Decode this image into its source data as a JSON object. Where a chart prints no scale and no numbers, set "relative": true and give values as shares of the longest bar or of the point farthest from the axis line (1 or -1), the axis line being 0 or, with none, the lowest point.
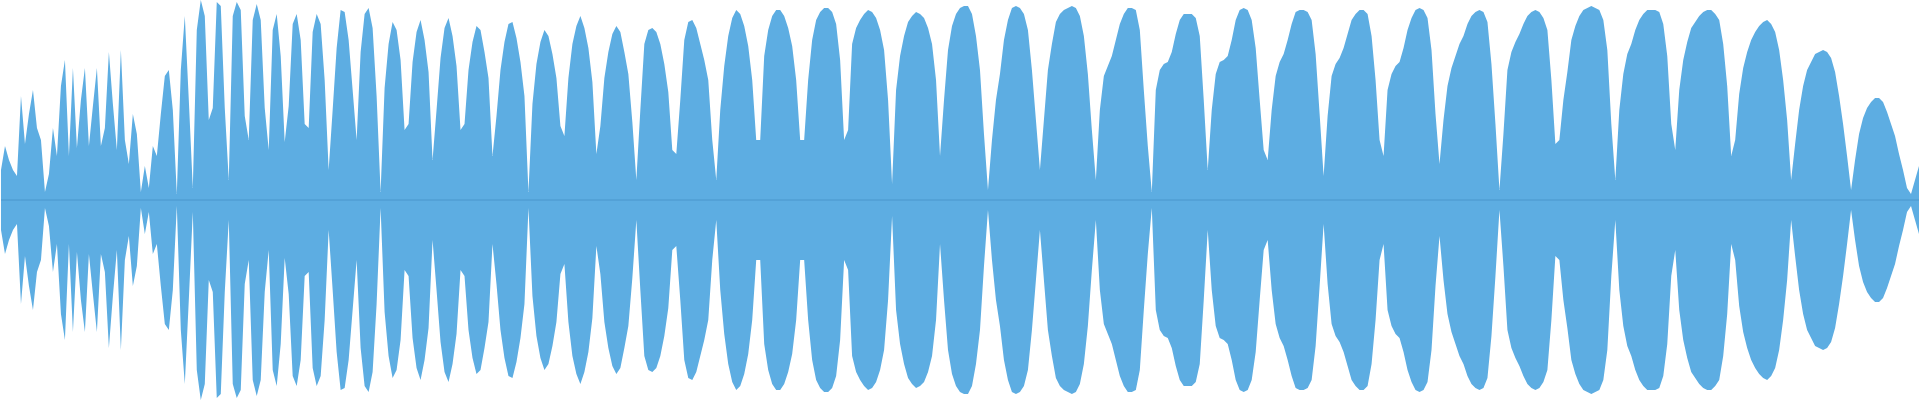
{
  "chart_data": {
    "type": "area",
    "relative": true,
    "categories": [
      null,
      null,
      null,
      null,
      null,
      null,
      null,
      null,
      null,
      null,
      null,
      null,
      null,
      null,
      null,
      null,
      null,
      null,
      null,
      null,
      null,
      null,
      null,
      null,
      null,
      null,
      null,
      null,
      null,
      null,
      null,
      null,
      null,
      null,
      null,
      null,
      null,
      null,
      null,
      null,
      null,
      null,
      null,
      null,
      null,
      null,
      null,
      null,
      null,
      null,
      null,
      null,
      null,
      null,
      null,
      null,
      null,
      null,
      null,
      null,
      null,
      null,
      null,
      null,
      null,
      null,
      null,
      null,
      null,
      null,
      null,
      null,
      null,
      null,
      null,
      null,
      null,
      null,
      null,
      null,
      null,
      null,
      null,
      null,
      null,
      null,
      null,
      null,
      null,
      null,
      null,
      null,
      null,
      null,
      null,
      null,
      null,
      null,
      null,
      null,
      null,
      null,
      null,
      null,
      null,
      null,
      null,
      null,
      null,
      null,
      null,
      null,
      null,
      null,
      null,
      null,
      null,
      null,
      null,
      null,
      null,
      null,
      null,
      null,
      null,
      null,
      null,
      null,
      null,
      null,
      null,
      null,
      null,
      null,
      null,
      null,
      null,
      null,
      null,
      null,
      null,
      null,
      null,
      null,
      null,
      null,
      null,
      null,
      null,
      null,
      null,
      null,
      null,
      null,
      null,
      null,
      null,
      null,
      null,
      null,
      null,
      null,
      null,
      null,
      null,
      null,
      null,
      null,
      null,
      null,
      null,
      null,
      null,
      null,
      null,
      null,
      null,
      null,
      null,
      null,
      null,
      null,
      null,
      null,
      null,
      null,
      null,
      null,
      null,
      null,
      null,
      null,
      null,
      null,
      null,
      null,
      null,
      null,
      null,
      null,
      null,
      null,
      null,
      null,
      null,
      null,
      null,
      null,
      null,
      null,
      null,
      null,
      null,
      null,
      null,
      null,
      null,
      null,
      null,
      null,
      null,
      null,
      null,
      null,
      null,
      null,
      null,
      null,
      null,
      null,
      null,
      null,
      null,
      null,
      null,
      null,
      null,
      null,
      null,
      null,
      null,
      null,
      null,
      null,
      null,
      null,
      null,
      null,
      null,
      null,
      null,
      null,
      null,
      null,
      null,
      null,
      null,
      null,
      null,
      null,
      null,
      null,
      null,
      null,
      null,
      null,
      null,
      null,
      null,
      null,
      null,
      null,
      null,
      null,
      null,
      null,
      null,
      null,
      null,
      null,
      null,
      null,
      null,
      null,
      null,
      null,
      null,
      null,
      null,
      null,
      null,
      null,
      null,
      null,
      null,
      null,
      null,
      null,
      null,
      null,
      null,
      null,
      null,
      null,
      null,
      null,
      null,
      null,
      null,
      null,
      null,
      null,
      null,
      null,
      null,
      null,
      null,
      null,
      null,
      null,
      null,
      null,
      null,
      null,
      null,
      null,
      null,
      null,
      null,
      null,
      null,
      null,
      null,
      null,
      null,
      null,
      null,
      null,
      null,
      null,
      null,
      null,
      null,
      null,
      null,
      null,
      null,
      null,
      null,
      null,
      null,
      null,
      null,
      null,
      null,
      null,
      null,
      null,
      null,
      null,
      null,
      null,
      null,
      null,
      null,
      null,
      null,
      null,
      null,
      null,
      null,
      null,
      null,
      null,
      null,
      null,
      null,
      null,
      null,
      null,
      null,
      null,
      null,
      null,
      null,
      null,
      null,
      null,
      null,
      null,
      null,
      null,
      null,
      null,
      null,
      null,
      null,
      null,
      null,
      null,
      null,
      null,
      null,
      null,
      null,
      null,
      null,
      null,
      null,
      null,
      null,
      null,
      null,
      null,
      null,
      null,
      null,
      null,
      null,
      null,
      null,
      null,
      null,
      null,
      null,
      null,
      null,
      null,
      null,
      null,
      null,
      null,
      null,
      null,
      null,
      null,
      null,
      null,
      null,
      null,
      null,
      null,
      null,
      null,
      null,
      null,
      null,
      null,
      null,
      null,
      null,
      null,
      null,
      null,
      null,
      null,
      null,
      null,
      null,
      null,
      null,
      null,
      null,
      null,
      null,
      null,
      null,
      null,
      null,
      null,
      null,
      null,
      null,
      null,
      null,
      null,
      null,
      null,
      null,
      null,
      null
    ],
    "ref_lines": [
      {
        "axis": "y",
        "value": 0,
        "color": "#4a96cc"
      }
    ],
    "series": [
      {
        "color": "#5dade2",
        "values": [
          0.15,
          0.27,
          0.2,
          0.15,
          0.12,
          0.52,
          0.28,
          0.43,
          0.55,
          0.36,
          0.3,
          0.04,
          0.13,
          0.36,
          0.22,
          0.57,
          0.7,
          0.22,
          0.66,
          0.26,
          0.5,
          0.66,
          0.27,
          0.47,
          0.66,
          0.27,
          0.36,
          0.74,
          0.48,
          0.25,
          0.75,
          0.3,
          0.18,
          0.43,
          0.33,
          0.04,
          0.17,
          0.06,
          0.27,
          0.22,
          0.43,
          0.62,
          0.65,
          0.45,
          0.03,
          0.65,
          0.92,
          0.5,
          0.06,
          0.85,
          1,
          0.92,
          0.4,
          0.46,
          0.99,
          0.97,
          0.46,
          0.1,
          0.92,
          0.99,
          0.95,
          0.42,
          0.3,
          0.9,
          0.98,
          0.9,
          0.46,
          0.25,
          0.85,
          0.93,
          0.72,
          0.29,
          0.47,
          0.88,
          0.93,
          0.8,
          0.38,
          0.36,
          0.84,
          0.93,
          0.88,
          0.6,
          0.15,
          0.45,
          0.76,
          0.95,
          0.94,
          0.8,
          0.55,
          0.3,
          0.74,
          0.93,
          0.96,
          0.86,
          0.52,
          0.04,
          0.56,
          0.78,
          0.89,
          0.85,
          0.7,
          0.35,
          0.38,
          0.69,
          0.84,
          0.9,
          0.8,
          0.64,
          0.2,
          0.45,
          0.71,
          0.86,
          0.91,
          0.82,
          0.67,
          0.35,
          0.38,
          0.65,
          0.79,
          0.87,
          0.85,
          0.74,
          0.61,
          0.22,
          0.42,
          0.65,
          0.79,
          0.88,
          0.89,
          0.81,
          0.69,
          0.52,
          0.04,
          0.48,
          0.68,
          0.79,
          0.85,
          0.82,
          0.73,
          0.61,
          0.37,
          0.32,
          0.61,
          0.78,
          0.87,
          0.92,
          0.86,
          0.76,
          0.59,
          0.23,
          0.37,
          0.61,
          0.74,
          0.83,
          0.87,
          0.84,
          0.74,
          0.63,
          0.39,
          0.1,
          0.45,
          0.78,
          0.85,
          0.86,
          0.84,
          0.78,
          0.68,
          0.54,
          0.25,
          0.23,
          0.5,
          0.8,
          0.89,
          0.9,
          0.86,
          0.78,
          0.7,
          0.6,
          0.3,
          0.1,
          0.45,
          0.67,
          0.82,
          0.91,
          0.95,
          0.93,
          0.87,
          0.77,
          0.6,
          0.3,
          0.3,
          0.72,
          0.85,
          0.92,
          0.95,
          0.95,
          0.92,
          0.86,
          0.77,
          0.6,
          0.3,
          0.3,
          0.6,
          0.8,
          0.9,
          0.94,
          0.96,
          0.96,
          0.94,
          0.88,
          0.7,
          0.3,
          0.35,
          0.78,
          0.86,
          0.9,
          0.93,
          0.95,
          0.94,
          0.91,
          0.85,
          0.75,
          0.5,
          0.08,
          0.55,
          0.72,
          0.82,
          0.89,
          0.92,
          0.94,
          0.93,
          0.91,
          0.86,
          0.78,
          0.6,
          0.22,
          0.5,
          0.75,
          0.87,
          0.93,
          0.96,
          0.97,
          0.97,
          0.93,
          0.82,
          0.65,
          0.33,
          0.05,
          0.3,
          0.5,
          0.63,
          0.8,
          0.9,
          0.96,
          0.97,
          0.96,
          0.93,
          0.85,
          0.65,
          0.4,
          0.15,
          0.4,
          0.65,
          0.78,
          0.89,
          0.93,
          0.95,
          0.96,
          0.97,
          0.96,
          0.92,
          0.82,
          0.63,
          0.35,
          0.1,
          0.45,
          0.62,
          0.67,
          0.72,
          0.8,
          0.88,
          0.93,
          0.96,
          0.96,
          0.95,
          0.85,
          0.55,
          0.27,
          0.04,
          0.55,
          0.65,
          0.68,
          0.69,
          0.74,
          0.83,
          0.9,
          0.93,
          0.93,
          0.93,
          0.91,
          0.82,
          0.5,
          0.15,
          0.45,
          0.63,
          0.69,
          0.7,
          0.72,
          0.8,
          0.9,
          0.95,
          0.96,
          0.95,
          0.9,
          0.76,
          0.5,
          0.25,
          0.2,
          0.45,
          0.62,
          0.69,
          0.73,
          0.8,
          0.88,
          0.94,
          0.95,
          0.95,
          0.94,
          0.9,
          0.73,
          0.43,
          0.12,
          0.42,
          0.62,
          0.68,
          0.71,
          0.76,
          0.83,
          0.9,
          0.93,
          0.95,
          0.95,
          0.93,
          0.82,
          0.6,
          0.3,
          0.22,
          0.55,
          0.63,
          0.67,
          0.69,
          0.76,
          0.85,
          0.91,
          0.95,
          0.96,
          0.95,
          0.91,
          0.75,
          0.43,
          0.18,
          0.4,
          0.57,
          0.66,
          0.72,
          0.78,
          0.82,
          0.88,
          0.92,
          0.94,
          0.95,
          0.94,
          0.89,
          0.68,
          0.38,
          0.05,
          0.33,
          0.65,
          0.74,
          0.79,
          0.83,
          0.88,
          0.92,
          0.94,
          0.95,
          0.94,
          0.91,
          0.85,
          0.6,
          0.28,
          0.3,
          0.5,
          0.64,
          0.8,
          0.87,
          0.92,
          0.95,
          0.96,
          0.97,
          0.96,
          0.95,
          0.9,
          0.75,
          0.38,
          0.1,
          0.45,
          0.63,
          0.73,
          0.78,
          0.85,
          0.9,
          0.93,
          0.95,
          0.95,
          0.95,
          0.94,
          0.88,
          0.72,
          0.38,
          0.25,
          0.55,
          0.7,
          0.79,
          0.86,
          0.89,
          0.92,
          0.94,
          0.95,
          0.95,
          0.93,
          0.9,
          0.78,
          0.57,
          0.22,
          0.3,
          0.53,
          0.66,
          0.74,
          0.8,
          0.84,
          0.87,
          0.89,
          0.9,
          0.88,
          0.84,
          0.75,
          0.6,
          0.4,
          0.1,
          0.28,
          0.45,
          0.57,
          0.65,
          0.69,
          0.73,
          0.74,
          0.75,
          0.74,
          0.71,
          0.64,
          0.52,
          0.38,
          0.22,
          0.05,
          0.2,
          0.33,
          0.41,
          0.46,
          0.49,
          0.51,
          0.51,
          0.49,
          0.44,
          0.38,
          0.32,
          0.23,
          0.15,
          0.06,
          0.03,
          0.1,
          0.17
        ]
      },
      {
        "color": "#5dade2",
        "values": [
          -0.15,
          -0.27,
          -0.2,
          -0.15,
          -0.12,
          -0.52,
          -0.28,
          -0.43,
          -0.55,
          -0.36,
          -0.3,
          -0.04,
          -0.13,
          -0.36,
          -0.22,
          -0.57,
          -0.7,
          -0.22,
          -0.66,
          -0.26,
          -0.5,
          -0.66,
          -0.27,
          -0.47,
          -0.66,
          -0.27,
          -0.36,
          -0.74,
          -0.48,
          -0.25,
          -0.75,
          -0.3,
          -0.18,
          -0.43,
          -0.33,
          -0.04,
          -0.17,
          -0.06,
          -0.27,
          -0.22,
          -0.43,
          -0.62,
          -0.65,
          -0.45,
          -0.03,
          -0.65,
          -0.92,
          -0.5,
          -0.06,
          -0.85,
          -1,
          -0.92,
          -0.4,
          -0.46,
          -0.99,
          -0.97,
          -0.46,
          -0.1,
          -0.92,
          -0.99,
          -0.95,
          -0.42,
          -0.3,
          -0.9,
          -0.98,
          -0.9,
          -0.46,
          -0.25,
          -0.85,
          -0.93,
          -0.72,
          -0.29,
          -0.47,
          -0.88,
          -0.93,
          -0.8,
          -0.38,
          -0.36,
          -0.84,
          -0.93,
          -0.88,
          -0.6,
          -0.15,
          -0.45,
          -0.76,
          -0.95,
          -0.94,
          -0.8,
          -0.55,
          -0.3,
          -0.74,
          -0.93,
          -0.96,
          -0.86,
          -0.52,
          -0.04,
          -0.56,
          -0.78,
          -0.89,
          -0.85,
          -0.7,
          -0.35,
          -0.38,
          -0.69,
          -0.84,
          -0.9,
          -0.8,
          -0.64,
          -0.2,
          -0.45,
          -0.71,
          -0.86,
          -0.91,
          -0.82,
          -0.67,
          -0.35,
          -0.38,
          -0.65,
          -0.79,
          -0.87,
          -0.85,
          -0.74,
          -0.61,
          -0.22,
          -0.42,
          -0.65,
          -0.79,
          -0.88,
          -0.89,
          -0.81,
          -0.69,
          -0.52,
          -0.04,
          -0.48,
          -0.68,
          -0.79,
          -0.85,
          -0.82,
          -0.73,
          -0.61,
          -0.37,
          -0.32,
          -0.61,
          -0.78,
          -0.87,
          -0.92,
          -0.86,
          -0.76,
          -0.59,
          -0.23,
          -0.37,
          -0.61,
          -0.74,
          -0.83,
          -0.87,
          -0.84,
          -0.74,
          -0.63,
          -0.39,
          -0.1,
          -0.45,
          -0.78,
          -0.85,
          -0.86,
          -0.84,
          -0.78,
          -0.68,
          -0.54,
          -0.25,
          -0.23,
          -0.5,
          -0.8,
          -0.89,
          -0.9,
          -0.86,
          -0.78,
          -0.7,
          -0.6,
          -0.3,
          -0.1,
          -0.45,
          -0.67,
          -0.82,
          -0.91,
          -0.95,
          -0.93,
          -0.87,
          -0.77,
          -0.6,
          -0.3,
          -0.3,
          -0.72,
          -0.85,
          -0.92,
          -0.95,
          -0.95,
          -0.92,
          -0.86,
          -0.77,
          -0.6,
          -0.3,
          -0.3,
          -0.6,
          -0.8,
          -0.9,
          -0.94,
          -0.96,
          -0.96,
          -0.94,
          -0.88,
          -0.7,
          -0.3,
          -0.35,
          -0.78,
          -0.86,
          -0.9,
          -0.93,
          -0.95,
          -0.94,
          -0.91,
          -0.85,
          -0.75,
          -0.5,
          -0.08,
          -0.55,
          -0.72,
          -0.82,
          -0.89,
          -0.92,
          -0.94,
          -0.93,
          -0.91,
          -0.86,
          -0.78,
          -0.6,
          -0.22,
          -0.5,
          -0.75,
          -0.87,
          -0.93,
          -0.96,
          -0.97,
          -0.97,
          -0.93,
          -0.82,
          -0.65,
          -0.33,
          -0.05,
          -0.3,
          -0.5,
          -0.63,
          -0.8,
          -0.9,
          -0.96,
          -0.97,
          -0.96,
          -0.93,
          -0.85,
          -0.65,
          -0.4,
          -0.15,
          -0.4,
          -0.65,
          -0.78,
          -0.89,
          -0.93,
          -0.95,
          -0.96,
          -0.97,
          -0.96,
          -0.92,
          -0.82,
          -0.63,
          -0.35,
          -0.1,
          -0.45,
          -0.62,
          -0.67,
          -0.72,
          -0.8,
          -0.88,
          -0.93,
          -0.96,
          -0.96,
          -0.95,
          -0.85,
          -0.55,
          -0.27,
          -0.04,
          -0.55,
          -0.65,
          -0.68,
          -0.69,
          -0.74,
          -0.83,
          -0.9,
          -0.93,
          -0.93,
          -0.93,
          -0.91,
          -0.82,
          -0.5,
          -0.15,
          -0.45,
          -0.63,
          -0.69,
          -0.7,
          -0.72,
          -0.8,
          -0.9,
          -0.95,
          -0.96,
          -0.95,
          -0.9,
          -0.76,
          -0.5,
          -0.25,
          -0.2,
          -0.45,
          -0.62,
          -0.69,
          -0.73,
          -0.8,
          -0.88,
          -0.94,
          -0.95,
          -0.95,
          -0.94,
          -0.9,
          -0.73,
          -0.43,
          -0.12,
          -0.42,
          -0.62,
          -0.68,
          -0.71,
          -0.76,
          -0.83,
          -0.9,
          -0.93,
          -0.95,
          -0.95,
          -0.93,
          -0.82,
          -0.6,
          -0.3,
          -0.22,
          -0.55,
          -0.63,
          -0.67,
          -0.69,
          -0.76,
          -0.85,
          -0.91,
          -0.95,
          -0.96,
          -0.95,
          -0.91,
          -0.75,
          -0.43,
          -0.18,
          -0.4,
          -0.57,
          -0.66,
          -0.72,
          -0.78,
          -0.82,
          -0.88,
          -0.92,
          -0.94,
          -0.95,
          -0.94,
          -0.89,
          -0.68,
          -0.38,
          -0.05,
          -0.33,
          -0.65,
          -0.74,
          -0.79,
          -0.83,
          -0.88,
          -0.92,
          -0.94,
          -0.95,
          -0.94,
          -0.91,
          -0.85,
          -0.6,
          -0.28,
          -0.3,
          -0.5,
          -0.64,
          -0.8,
          -0.87,
          -0.92,
          -0.95,
          -0.96,
          -0.97,
          -0.96,
          -0.95,
          -0.9,
          -0.75,
          -0.38,
          -0.1,
          -0.45,
          -0.63,
          -0.73,
          -0.78,
          -0.85,
          -0.9,
          -0.93,
          -0.95,
          -0.95,
          -0.95,
          -0.94,
          -0.88,
          -0.72,
          -0.38,
          -0.25,
          -0.55,
          -0.7,
          -0.79,
          -0.86,
          -0.89,
          -0.92,
          -0.94,
          -0.95,
          -0.95,
          -0.93,
          -0.9,
          -0.78,
          -0.57,
          -0.22,
          -0.3,
          -0.53,
          -0.66,
          -0.74,
          -0.8,
          -0.84,
          -0.87,
          -0.89,
          -0.9,
          -0.88,
          -0.84,
          -0.75,
          -0.6,
          -0.4,
          -0.1,
          -0.28,
          -0.45,
          -0.57,
          -0.65,
          -0.69,
          -0.73,
          -0.74,
          -0.75,
          -0.74,
          -0.71,
          -0.64,
          -0.52,
          -0.38,
          -0.22,
          -0.05,
          -0.2,
          -0.33,
          -0.41,
          -0.46,
          -0.49,
          -0.51,
          -0.51,
          -0.49,
          -0.44,
          -0.38,
          -0.32,
          -0.23,
          -0.15,
          -0.06,
          -0.03,
          -0.1,
          -0.17
        ]
      }
    ]
  }
}
